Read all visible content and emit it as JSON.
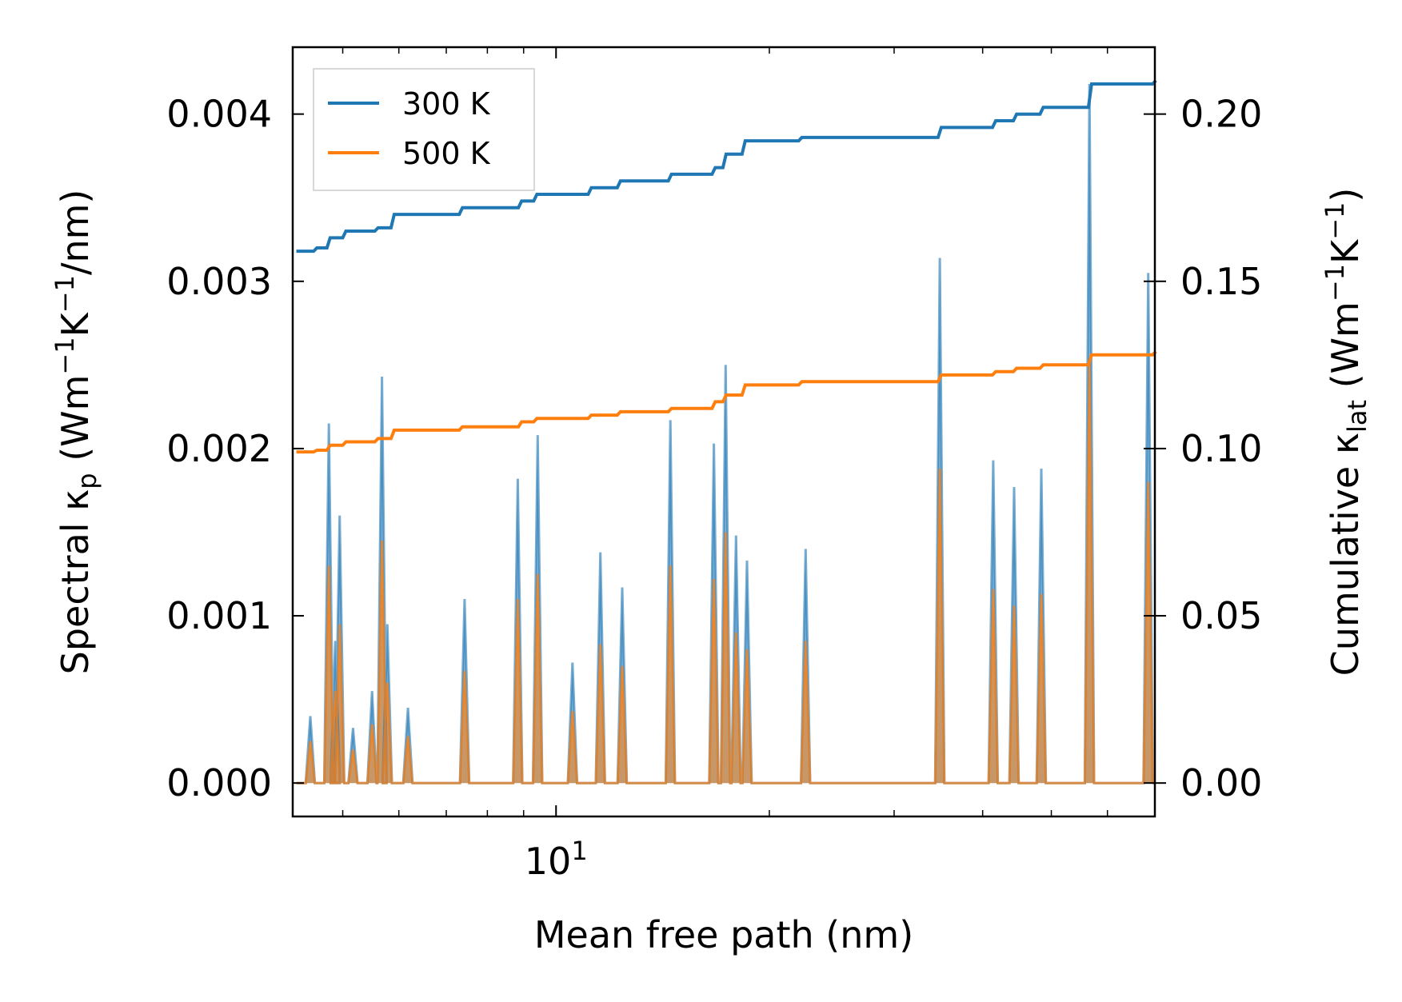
{
  "chart_data": {
    "type": "line",
    "xscale": "log",
    "xlabel": "Mean free path (nm)",
    "xlim": [
      4.25,
      70
    ],
    "x_major_tick_label": "10",
    "x_major_tick_exp": "1",
    "y_left": {
      "label_main": "Spectral κ",
      "label_sub": "p",
      "label_units": [
        {
          "t": " (Wm",
          "s": ""
        },
        {
          "t": "−1",
          "s": "sup"
        },
        {
          "t": "K",
          "s": ""
        },
        {
          "t": "−1",
          "s": "sup"
        },
        {
          "t": "/nm)",
          "s": ""
        }
      ],
      "ylim": [
        -0.0002,
        0.0044
      ],
      "ticks": [
        0.0,
        0.001,
        0.002,
        0.003,
        0.004
      ],
      "tick_labels": [
        "0.000",
        "0.001",
        "0.002",
        "0.003",
        "0.004"
      ]
    },
    "y_right": {
      "label_main": "Cumulative κ",
      "label_sub": "lat",
      "label_units": [
        {
          "t": " (Wm",
          "s": ""
        },
        {
          "t": "−1",
          "s": "sup"
        },
        {
          "t": "K",
          "s": ""
        },
        {
          "t": "−1",
          "s": "sup"
        },
        {
          "t": ")",
          "s": ""
        }
      ],
      "ylim": [
        -0.01,
        0.22
      ],
      "ticks": [
        0.0,
        0.05,
        0.1,
        0.15,
        0.2
      ],
      "tick_labels": [
        "0.00",
        "0.05",
        "0.10",
        "0.15",
        "0.20"
      ]
    },
    "legend": {
      "position": "top-left",
      "entries": [
        {
          "label": "300 K",
          "color": "#1f77b4"
        },
        {
          "label": "500 K",
          "color": "#ff7f0e"
        }
      ]
    },
    "spectral_peaks": [
      {
        "x": 4.5,
        "y300": 0.0004,
        "y500": 0.00025
      },
      {
        "x": 4.78,
        "y300": 0.00215,
        "y500": 0.0013
      },
      {
        "x": 4.88,
        "y300": 0.00085,
        "y500": 0.00055
      },
      {
        "x": 4.95,
        "y300": 0.0016,
        "y500": 0.00095
      },
      {
        "x": 5.17,
        "y300": 0.00033,
        "y500": 0.0002
      },
      {
        "x": 5.5,
        "y300": 0.00055,
        "y500": 0.00035
      },
      {
        "x": 5.68,
        "y300": 0.00243,
        "y500": 0.00145
      },
      {
        "x": 5.78,
        "y300": 0.00095,
        "y500": 0.0006
      },
      {
        "x": 6.18,
        "y300": 0.00045,
        "y500": 0.00028
      },
      {
        "x": 7.43,
        "y300": 0.0011,
        "y500": 0.00067
      },
      {
        "x": 8.83,
        "y300": 0.00182,
        "y500": 0.0011
      },
      {
        "x": 9.42,
        "y300": 0.00208,
        "y500": 0.00125
      },
      {
        "x": 10.55,
        "y300": 0.00072,
        "y500": 0.00043
      },
      {
        "x": 11.55,
        "y300": 0.00138,
        "y500": 0.00083
      },
      {
        "x": 12.4,
        "y300": 0.00117,
        "y500": 0.0007
      },
      {
        "x": 14.5,
        "y300": 0.00217,
        "y500": 0.0013
      },
      {
        "x": 16.7,
        "y300": 0.00203,
        "y500": 0.00122
      },
      {
        "x": 17.35,
        "y300": 0.0025,
        "y500": 0.0015
      },
      {
        "x": 17.95,
        "y300": 0.00148,
        "y500": 0.0009
      },
      {
        "x": 18.6,
        "y300": 0.00133,
        "y500": 0.0008
      },
      {
        "x": 22.5,
        "y300": 0.0014,
        "y500": 0.00085
      },
      {
        "x": 34.8,
        "y300": 0.00314,
        "y500": 0.00188
      },
      {
        "x": 41.4,
        "y300": 0.00193,
        "y500": 0.00116
      },
      {
        "x": 44.3,
        "y300": 0.00177,
        "y500": 0.00106
      },
      {
        "x": 48.4,
        "y300": 0.00188,
        "y500": 0.00113
      },
      {
        "x": 56.6,
        "y300": 0.00418,
        "y500": 0.00251
      },
      {
        "x": 68.5,
        "y300": 0.00305,
        "y500": 0.0018
      }
    ],
    "cumulative_300K": {
      "x": [
        4.3,
        4.55,
        4.75,
        5.0,
        5.55,
        5.85,
        7.3,
        8.85,
        9.3,
        11.1,
        12.2,
        14.4,
        16.6,
        17.2,
        18.3,
        22.0,
        34.6,
        41.3,
        44.2,
        48.2,
        56.4,
        69.5
      ],
      "y": [
        0.159,
        0.16,
        0.163,
        0.165,
        0.166,
        0.17,
        0.172,
        0.174,
        0.176,
        0.178,
        0.18,
        0.182,
        0.184,
        0.188,
        0.192,
        0.193,
        0.196,
        0.198,
        0.2,
        0.202,
        0.209,
        0.21
      ]
    },
    "cumulative_500K": {
      "x": [
        4.3,
        4.55,
        4.75,
        5.0,
        5.55,
        5.85,
        7.3,
        8.85,
        9.3,
        11.1,
        12.2,
        14.4,
        16.6,
        17.2,
        18.3,
        22.0,
        34.6,
        41.3,
        44.2,
        48.2,
        56.4,
        69.5
      ],
      "y": [
        0.099,
        0.0995,
        0.101,
        0.102,
        0.103,
        0.1055,
        0.1065,
        0.108,
        0.109,
        0.11,
        0.111,
        0.112,
        0.114,
        0.116,
        0.119,
        0.12,
        0.122,
        0.123,
        0.124,
        0.125,
        0.128,
        0.129
      ]
    }
  }
}
